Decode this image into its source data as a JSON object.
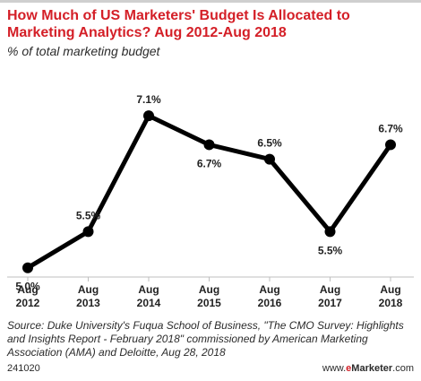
{
  "chart_data": {
    "type": "line",
    "title": "How Much of US Marketers' Budget Is Allocated to Marketing Analytics? Aug 2012-Aug 2018",
    "subtitle": "% of total marketing budget",
    "categories": [
      [
        "Aug",
        "2012"
      ],
      [
        "Aug",
        "2013"
      ],
      [
        "Aug",
        "2014"
      ],
      [
        "Aug",
        "2015"
      ],
      [
        "Aug",
        "2016"
      ],
      [
        "Aug",
        "2017"
      ],
      [
        "Aug",
        "2018"
      ]
    ],
    "series": [
      {
        "values": [
          5.0,
          5.5,
          7.1,
          6.7,
          6.5,
          5.5,
          6.7
        ],
        "labels": [
          "5.0%",
          "5.5%",
          "7.1%",
          "6.7%",
          "6.5%",
          "5.5%",
          "6.7%"
        ],
        "label_positions": [
          "below",
          "above",
          "above",
          "below",
          "above",
          "below",
          "above"
        ]
      }
    ],
    "ylim": [
      4.6,
      7.3
    ],
    "grid": false,
    "line_color": "#000000"
  },
  "source": "Source: Duke University's Fuqua School of Business, \"The CMO Survey: Highlights and Insights Report - February 2018\" commissioned by American Marketing Association (AMA) and Deloitte, Aug 28, 2018",
  "footer": {
    "id": "241020",
    "brand_prefix": "www.",
    "brand_e": "e",
    "brand_name": "Marketer",
    "brand_suffix": ".com"
  },
  "colors": {
    "title": "#d41f27",
    "axis": "#bfbfbf"
  }
}
